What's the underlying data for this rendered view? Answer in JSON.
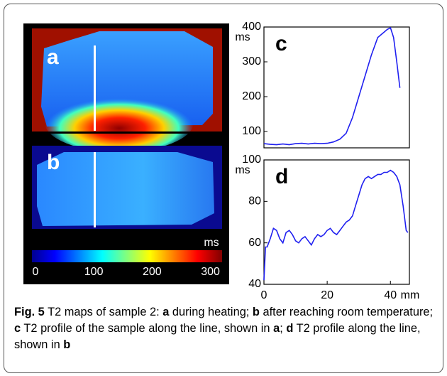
{
  "image_panels": [
    {
      "label": "a"
    },
    {
      "label": "b"
    }
  ],
  "colorbar": {
    "unit": "ms",
    "lim": [
      -6,
      320
    ],
    "ticks": [
      0,
      100,
      200,
      300
    ]
  },
  "chart_data": [
    {
      "type": "line",
      "label": "c",
      "ylabel": "ms",
      "x": [
        0,
        2,
        4,
        6,
        8,
        10,
        12,
        14,
        16,
        18,
        20,
        22,
        24,
        26,
        28,
        30,
        32,
        34,
        36,
        38,
        39,
        40,
        41,
        42,
        43
      ],
      "series": [
        {
          "color": "#2020f0",
          "values": [
            65,
            63,
            62,
            64,
            62,
            65,
            66,
            64,
            66,
            65,
            66,
            70,
            78,
            95,
            140,
            200,
            260,
            320,
            370,
            385,
            393,
            398,
            370,
            300,
            225
          ]
        }
      ],
      "xlim": [
        0,
        46
      ],
      "ylim": [
        53,
        400
      ],
      "yticks": [
        100,
        200,
        300,
        400
      ]
    },
    {
      "type": "line",
      "label": "d",
      "ylabel": "ms",
      "xlabel": "mm",
      "x": [
        0,
        0.5,
        1,
        2,
        3,
        4,
        5,
        6,
        7,
        8,
        9,
        10,
        11,
        12,
        13,
        14,
        15,
        16,
        17,
        18,
        19,
        20,
        21,
        22,
        23,
        24,
        25,
        26,
        27,
        28,
        29,
        30,
        31,
        32,
        33,
        34,
        35,
        36,
        37,
        38,
        39,
        40,
        41,
        42,
        43,
        44,
        45,
        45.5
      ],
      "series": [
        {
          "color": "#2020f0",
          "values": [
            42,
            58,
            58,
            62,
            67,
            66,
            62,
            60,
            65,
            66,
            64,
            61,
            60,
            62,
            63,
            61,
            59,
            62,
            64,
            63,
            64,
            66,
            67,
            65,
            64,
            66,
            68,
            70,
            71,
            73,
            78,
            83,
            88,
            91,
            92,
            91,
            92,
            93,
            93,
            94,
            94,
            95,
            94,
            92,
            88,
            78,
            66,
            65
          ]
        }
      ],
      "xlim": [
        0,
        46
      ],
      "xticks": [
        0,
        20,
        40
      ],
      "ylim": [
        40,
        100
      ],
      "yticks": [
        40,
        60,
        80,
        100
      ]
    }
  ],
  "caption": [
    {
      "text": "Fig. 5",
      "bold": true
    },
    {
      "text": " T2 maps of sample 2: ",
      "bold": false
    },
    {
      "text": "a",
      "bold": true
    },
    {
      "text": " during heating; ",
      "bold": false
    },
    {
      "text": "b",
      "bold": true
    },
    {
      "text": " after reaching room temperature; ",
      "bold": false
    },
    {
      "text": "c",
      "bold": true
    },
    {
      "text": " T2 profile of the sample along the line, shown in ",
      "bold": false
    },
    {
      "text": "a",
      "bold": true
    },
    {
      "text": "; ",
      "bold": false
    },
    {
      "text": "d",
      "bold": true
    },
    {
      "text": " T2 profile along the line, shown in ",
      "bold": false
    },
    {
      "text": "b",
      "bold": true
    }
  ]
}
